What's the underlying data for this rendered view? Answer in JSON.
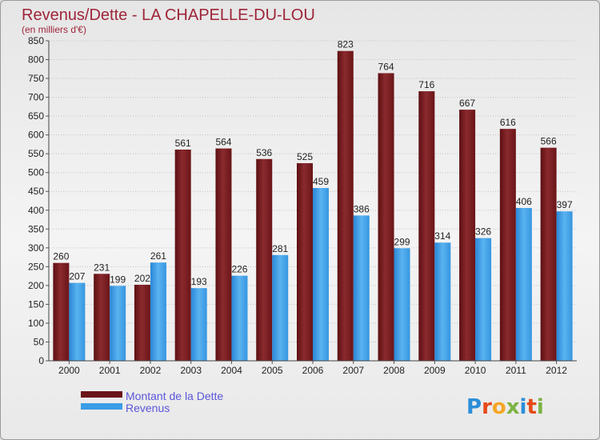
{
  "chart_data": {
    "type": "bar",
    "title": "Revenus/Dette - LA CHAPELLE-DU-LOU",
    "subtitle": "(en milliers d'€)",
    "categories": [
      "2000",
      "2001",
      "2002",
      "2003",
      "2004",
      "2005",
      "2006",
      "2007",
      "2008",
      "2009",
      "2010",
      "2011",
      "2012"
    ],
    "series": [
      {
        "name": "Montant de la Dette",
        "color": "#8a1f24",
        "values": [
          260,
          231,
          202,
          561,
          564,
          536,
          525,
          823,
          764,
          716,
          667,
          616,
          566
        ]
      },
      {
        "name": "Revenus",
        "color": "#3a9de6",
        "values": [
          207,
          199,
          261,
          193,
          226,
          281,
          459,
          386,
          299,
          314,
          326,
          406,
          397
        ]
      }
    ],
    "ylim": [
      0,
      850
    ],
    "ytick_step": 50,
    "grid": true,
    "legend": "bottom-left"
  },
  "logo": {
    "text": "Proxiti",
    "colors": [
      "#2b8ed9",
      "#e64a19",
      "#f5a623",
      "#7cb342",
      "#2b8ed9",
      "#e64a19",
      "#7cb342"
    ]
  }
}
